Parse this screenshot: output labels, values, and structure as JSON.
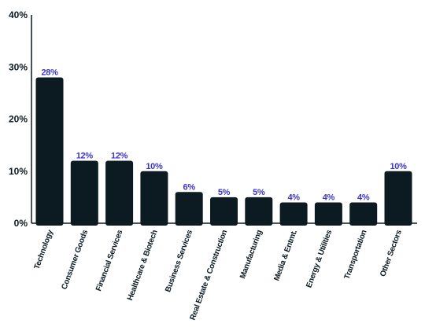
{
  "colors": {
    "bar": "#0c1a22",
    "data_label": "#3a35c8",
    "axis": "#0c1a22",
    "text": "#0c1a22"
  },
  "chart_data": {
    "type": "bar",
    "title": "",
    "xlabel": "",
    "ylabel": "",
    "ylim": [
      0,
      40
    ],
    "yticks": [
      0,
      10,
      20,
      30,
      40
    ],
    "ytick_labels": [
      "0%",
      "10%",
      "20%",
      "30%",
      "40%"
    ],
    "grid": false,
    "legend": "none",
    "categories": [
      "Technology",
      "Consumer Goods",
      "Financial Services",
      "Healthcare & Biotech",
      "Business Services",
      "Real Estate & Construction",
      "Manufacturing",
      "Media & Entmt.",
      "Energy & Utilities",
      "Transportation",
      "Other Sectors"
    ],
    "values": [
      28,
      12,
      12,
      10,
      6,
      5,
      5,
      4,
      4,
      4,
      10
    ],
    "data_labels": [
      "28%",
      "12%",
      "12%",
      "10%",
      "6%",
      "5%",
      "5%",
      "4%",
      "4%",
      "4%",
      "10%"
    ]
  }
}
